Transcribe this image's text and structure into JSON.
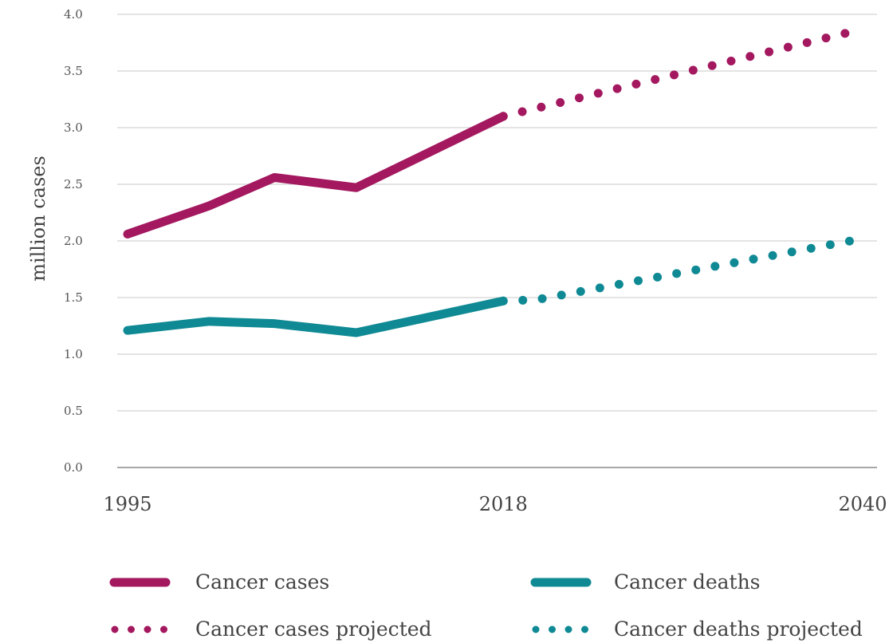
{
  "chart_data": {
    "type": "line",
    "ylabel": "million cases",
    "xlabel": "",
    "ylim": [
      0,
      4.0
    ],
    "xlim": [
      1995,
      2040
    ],
    "yticks": [
      "0.0",
      "0.5",
      "1.0",
      "1.5",
      "2.0",
      "2.5",
      "3.0",
      "3.5",
      "4.0"
    ],
    "ytick_values": [
      0,
      0.5,
      1.0,
      1.5,
      2.0,
      2.5,
      3.0,
      3.5,
      4.0
    ],
    "xticks": [
      "1995",
      "2018",
      "2040"
    ],
    "xtick_values": [
      1995,
      2018,
      2040
    ],
    "grid": true,
    "legend_placement": "bottom",
    "colors": {
      "cases": "#a3185f",
      "deaths": "#0f8a94"
    },
    "series": [
      {
        "name": "Cancer cases",
        "style": "solid",
        "color": "#a3185f",
        "x": [
          1995,
          2000,
          2004,
          2009,
          2018
        ],
        "y": [
          2.06,
          2.31,
          2.56,
          2.47,
          3.1
        ]
      },
      {
        "name": "Cancer deaths",
        "style": "solid",
        "color": "#0f8a94",
        "x": [
          1995,
          2000,
          2004,
          2009,
          2018
        ],
        "y": [
          1.21,
          1.29,
          1.27,
          1.19,
          1.47
        ]
      },
      {
        "name": "Cancer cases projected",
        "style": "dotted",
        "color": "#a3185f",
        "x": [
          2018,
          2040
        ],
        "y": [
          3.1,
          3.87
        ]
      },
      {
        "name": "Cancer deaths projected",
        "style": "dotted",
        "color": "#0f8a94",
        "x": [
          2018,
          2020,
          2040
        ],
        "y": [
          1.47,
          1.48,
          2.02
        ]
      }
    ]
  },
  "legend": {
    "cases": "Cancer cases",
    "deaths": "Cancer deaths",
    "cases_projected": "Cancer cases projected",
    "deaths_projected": "Cancer deaths projected"
  }
}
